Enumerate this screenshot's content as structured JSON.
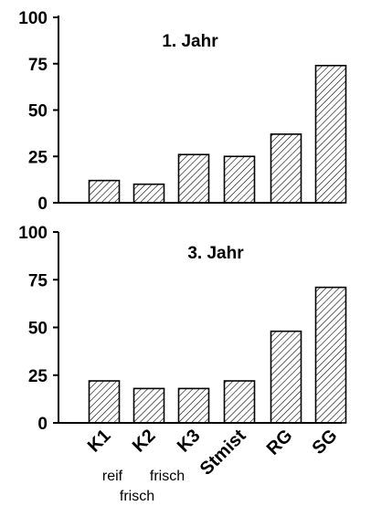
{
  "chart_data": [
    {
      "type": "bar",
      "title": "1. Jahr",
      "categories": [
        "K1",
        "K2",
        "K3",
        "Stmist",
        "RG",
        "SG"
      ],
      "values": [
        12,
        10,
        26,
        25,
        37,
        74
      ],
      "ylim": [
        0,
        100
      ],
      "yticks": [
        "0",
        "25",
        "50",
        "75",
        "100"
      ],
      "grid": false,
      "pattern": "diagonal-hatch"
    },
    {
      "type": "bar",
      "title": "3. Jahr",
      "categories": [
        "K1",
        "K2",
        "K3",
        "Stmist",
        "RG",
        "SG"
      ],
      "values": [
        22,
        18,
        18,
        22,
        48,
        71
      ],
      "ylim": [
        0,
        100
      ],
      "yticks": [
        "0",
        "25",
        "50",
        "75",
        "100"
      ],
      "grid": false,
      "pattern": "diagonal-hatch"
    }
  ],
  "category_labels": [
    "K1",
    "K2",
    "K3",
    "Stmist",
    "RG",
    "SG"
  ],
  "category_notes": {
    "reif": "reif",
    "frisch_k2": "frisch",
    "frisch_k3": "frisch"
  }
}
